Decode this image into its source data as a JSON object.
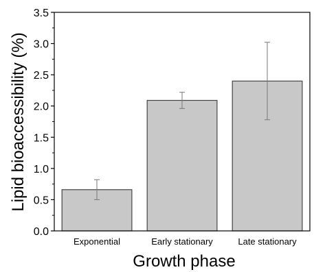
{
  "chart_data": {
    "type": "bar",
    "categories": [
      "Exponential",
      "Early stationary",
      "Late stationary"
    ],
    "values": [
      0.66,
      2.09,
      2.4
    ],
    "errors": [
      0.16,
      0.13,
      0.62
    ],
    "xlabel": "Growth phase",
    "ylabel": "Lipid bioaccessibility (%)",
    "ylim": [
      0,
      3.5
    ],
    "yticks": [
      "0.0",
      "0.5",
      "1.0",
      "1.5",
      "2.0",
      "2.5",
      "3.0",
      "3.5"
    ],
    "bar_color": "#c8c8c8",
    "grid": false
  }
}
